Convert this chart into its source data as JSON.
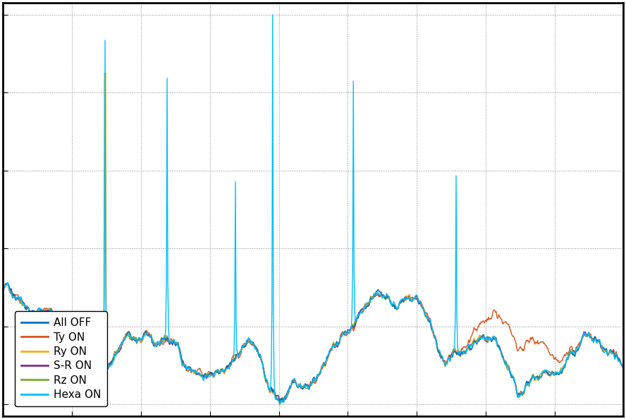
{
  "legend_labels": [
    "All OFF",
    "Ty ON",
    "Ry ON",
    "S-R ON",
    "Rz ON",
    "Hexa ON"
  ],
  "line_colors": [
    "#0072BD",
    "#D95319",
    "#EDB120",
    "#7E2F8E",
    "#77AC30",
    "#00BFFF"
  ],
  "line_widths": [
    1.0,
    1.0,
    1.0,
    1.0,
    1.0,
    1.0
  ],
  "background_color": "#ffffff",
  "n_points": 900,
  "seed": 42
}
